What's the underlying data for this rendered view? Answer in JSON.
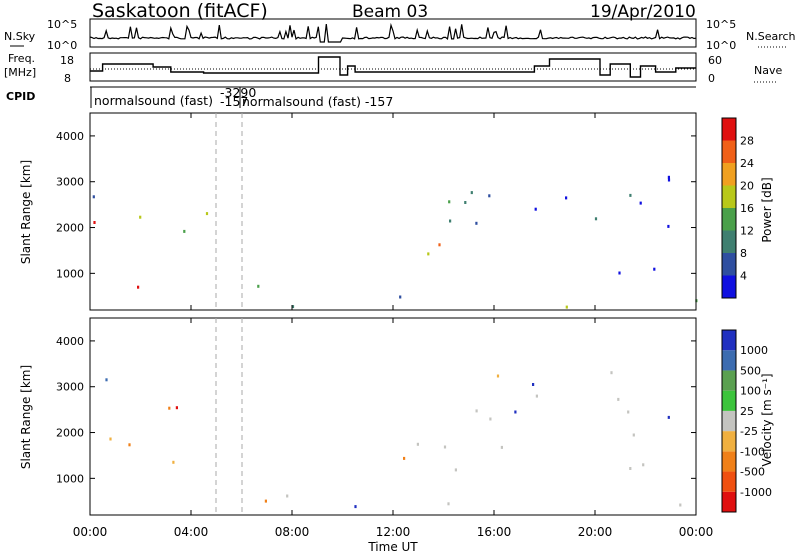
{
  "header": {
    "station": "Saskatoon (fitACF)",
    "beam": "Beam 03",
    "date": "19/Apr/2010"
  },
  "chart_data": [
    {
      "type": "line",
      "panel": "noise",
      "labels": {
        "left": "N.Sky",
        "right": "N.Search"
      },
      "left_ticks": [
        "10^5",
        "10^0"
      ],
      "right_ticks": [
        "10^5",
        "10^0"
      ]
    },
    {
      "type": "line",
      "panel": "frequency",
      "labels": {
        "left_line1": "Freq.",
        "left_line2": "[MHz]",
        "right": "Nave"
      },
      "left_ticks": [
        "18",
        "8"
      ],
      "right_ticks": [
        "60",
        "0"
      ]
    },
    {
      "type": "table",
      "panel": "cpid",
      "label": "CPID",
      "segments": [
        {
          "text": "normalsound (fast)"
        },
        {
          "text": "-3290"
        },
        {
          "text": "-157"
        },
        {
          "text": "normalsound (fast)  -157"
        }
      ]
    },
    {
      "type": "heatmap",
      "panel": "power",
      "ylabel": "Slant Range [km]",
      "yticks": [
        "1000",
        "2000",
        "3000",
        "4000"
      ],
      "ylim": [
        200,
        4500
      ],
      "colorbar_label": "Power [dB]",
      "colorbar_ticks": [
        "28",
        "24",
        "20",
        "16",
        "12",
        "8",
        "4"
      ]
    },
    {
      "type": "heatmap",
      "panel": "velocity",
      "ylabel": "Slant Range [km]",
      "yticks": [
        "1000",
        "2000",
        "3000",
        "4000"
      ],
      "ylim": [
        200,
        4500
      ],
      "colorbar_label": "Velocity [m s⁻¹]",
      "colorbar_ticks": [
        "1000",
        "500",
        "100",
        "25",
        "-25",
        "-100",
        "-500",
        "-1000"
      ]
    }
  ],
  "x_axis": {
    "label": "Time UT",
    "ticks": [
      "00:00",
      "04:00",
      "08:00",
      "12:00",
      "16:00",
      "20:00",
      "00:00"
    ]
  },
  "colors": {
    "power": [
      "#1010e0",
      "#2f4fa0",
      "#3f7f70",
      "#4aa04a",
      "#b8c81a",
      "#f0a020",
      "#f06018",
      "#e01010"
    ],
    "velocity": [
      "#2030c0",
      "#3c6cb0",
      "#5aa050",
      "#3cc43c",
      "#c4c4c0",
      "#f0b040",
      "#f08018",
      "#f05010",
      "#e01010"
    ]
  }
}
